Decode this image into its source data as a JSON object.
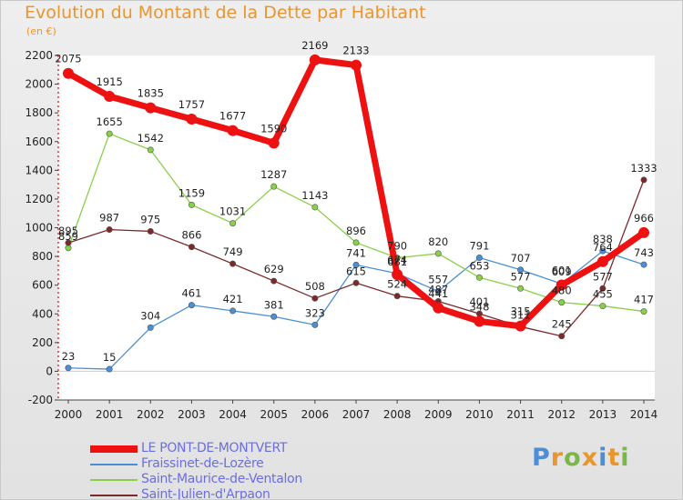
{
  "title": "Evolution du Montant de la Dette par Habitant",
  "subtitle": "(en €)",
  "logo": {
    "letters": [
      "P",
      "r",
      "o",
      "x",
      "i",
      "t",
      "i"
    ],
    "colors": [
      "#4a8fd6",
      "#e8962e",
      "#7ab648",
      "#e8962e",
      "#4a8fd6",
      "#e8962e",
      "#7ab648"
    ]
  },
  "chart_data": {
    "type": "line",
    "x": [
      "2000",
      "2001",
      "2002",
      "2003",
      "2004",
      "2005",
      "2006",
      "2007",
      "2008",
      "2009",
      "2010",
      "2011",
      "2012",
      "2013",
      "2014"
    ],
    "ylim": [
      -200,
      2200
    ],
    "yticks": [
      "-200",
      "0",
      "200",
      "400",
      "600",
      "800",
      "1000",
      "1200",
      "1400",
      "1600",
      "1800",
      "2000",
      "2200"
    ],
    "grid": false,
    "legend_position": "bottom-left",
    "series": [
      {
        "name": "LE PONT-DE-MONTVERT",
        "color": "#ee1111",
        "values": [
          2075,
          1915,
          1835,
          1757,
          1677,
          1590,
          2169,
          2133,
          674,
          441,
          348,
          315,
          601,
          764,
          966
        ],
        "labels": [
          "2075",
          "1915",
          "1835",
          "1757",
          "1677",
          "1590",
          "2169",
          "2133",
          "674",
          "441",
          "348",
          "315",
          "601",
          "764",
          "966"
        ]
      },
      {
        "name": "Fraissinet-de-Lozère",
        "color": "#4a8fd6",
        "values": [
          23,
          15,
          304,
          461,
          421,
          381,
          323,
          741,
          681,
          557,
          791,
          707,
          609,
          838,
          743
        ],
        "labels": [
          "23",
          "15",
          "304",
          "461",
          "421",
          "381",
          "323",
          "741",
          "681",
          "557",
          "791",
          "707",
          "609",
          "838",
          "743"
        ]
      },
      {
        "name": "Saint-Maurice-de-Ventalon",
        "color": "#88d048",
        "values": [
          859,
          1655,
          1542,
          1159,
          1031,
          1287,
          1143,
          896,
          790,
          820,
          653,
          577,
          480,
          455,
          417
        ],
        "labels": [
          "859",
          "1655",
          "1542",
          "1159",
          "1031",
          "1287",
          "1143",
          "896",
          "790",
          "820",
          "653",
          "577",
          "480",
          "455",
          "417"
        ]
      },
      {
        "name": "Saint-Julien-d'Arpaon",
        "color": "#7a2a2a",
        "values": [
          895,
          987,
          975,
          866,
          749,
          629,
          508,
          615,
          524,
          487,
          401,
          311,
          245,
          577,
          1333
        ],
        "labels": [
          "895",
          "987",
          "975",
          "866",
          "749",
          "629",
          "508",
          "615",
          "524",
          "487",
          "401",
          "311",
          "245",
          "577",
          "1333"
        ]
      }
    ]
  }
}
